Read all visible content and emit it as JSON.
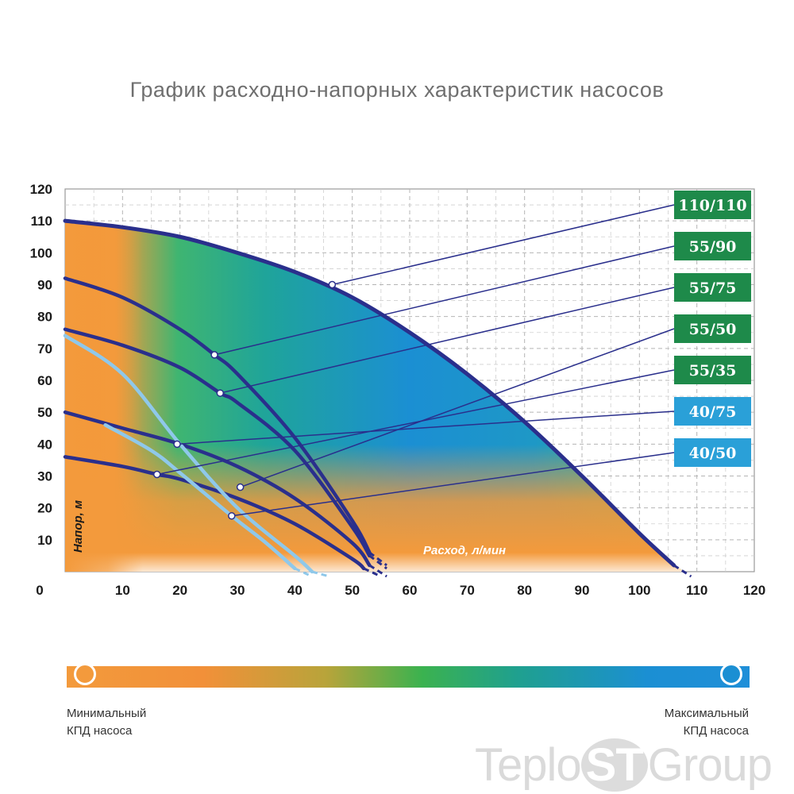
{
  "page": {
    "title": "График расходно-напорных характеристик насосов"
  },
  "chart_data": {
    "type": "line",
    "title": "График расходно-напорных характеристик насосов",
    "xlabel": "Расход, л/мин",
    "ylabel": "Напор, м",
    "xlim": [
      0,
      120
    ],
    "ylim": [
      0,
      120
    ],
    "x_ticks": [
      0,
      10,
      20,
      30,
      40,
      50,
      60,
      70,
      80,
      90,
      100,
      110,
      120
    ],
    "y_ticks": [
      10,
      20,
      30,
      40,
      50,
      60,
      70,
      80,
      90,
      100,
      110,
      120
    ],
    "grid": true,
    "colors": {
      "curve_dark": "#2a2f8c",
      "curve_light": "#8fc8ea",
      "label_green": "#1e8a4a",
      "label_blue": "#2aa0d8",
      "efficiency_min": "#f39a3c",
      "efficiency_max": "#1b8fd3"
    },
    "series": [
      {
        "name": "110/110",
        "style": "dark",
        "label_color": "green",
        "x": [
          0,
          10,
          20,
          30,
          40,
          50,
          60,
          70,
          80,
          90,
          100,
          106
        ],
        "y": [
          110,
          108,
          105,
          100,
          94,
          86,
          75,
          62,
          47,
          30,
          12,
          2
        ],
        "marker": [
          46.5,
          90
        ]
      },
      {
        "name": "55/90",
        "style": "dark",
        "label_color": "green",
        "x": [
          0,
          10,
          20,
          26,
          30,
          40,
          50,
          53
        ],
        "y": [
          92,
          86,
          76,
          68,
          62,
          42,
          16,
          6
        ],
        "marker": [
          26,
          68
        ]
      },
      {
        "name": "55/75",
        "style": "dark",
        "label_color": "green",
        "x": [
          0,
          10,
          20,
          27,
          30,
          40,
          50,
          53
        ],
        "y": [
          76,
          71,
          64,
          56,
          53,
          38,
          14,
          5
        ],
        "marker": [
          27,
          56
        ]
      },
      {
        "name": "55/50",
        "style": "dark",
        "label_color": "green",
        "x": [
          0,
          10,
          20,
          30,
          40,
          50,
          53
        ],
        "y": [
          50,
          45,
          40,
          33,
          23,
          9,
          2
        ],
        "marker": [
          30.5,
          26.5
        ]
      },
      {
        "name": "55/35",
        "style": "dark",
        "label_color": "green",
        "x": [
          0,
          10,
          16,
          20,
          30,
          40,
          50,
          52
        ],
        "y": [
          36,
          33,
          30.5,
          29,
          23,
          15,
          4,
          1
        ],
        "marker": [
          16,
          30.5
        ]
      },
      {
        "name": "40/75",
        "style": "light",
        "label_color": "blue",
        "x": [
          0,
          10,
          20,
          30,
          40,
          43
        ],
        "y": [
          74,
          62,
          40,
          20,
          5,
          0
        ],
        "marker": [
          19.5,
          40
        ]
      },
      {
        "name": "40/50",
        "style": "light",
        "label_color": "blue",
        "x": [
          7,
          15,
          20,
          29,
          35,
          40
        ],
        "y": [
          46,
          38,
          31,
          17.5,
          9,
          1
        ],
        "marker": [
          29,
          17.5
        ]
      }
    ]
  },
  "legend": {
    "min_line1": "Минимальный",
    "min_line2": "КПД насоса",
    "max_line1": "Максимальный",
    "max_line2": "КПД насоса"
  },
  "watermark": {
    "part1": "Teplo",
    "part2": "ST",
    "part3": "Group"
  }
}
